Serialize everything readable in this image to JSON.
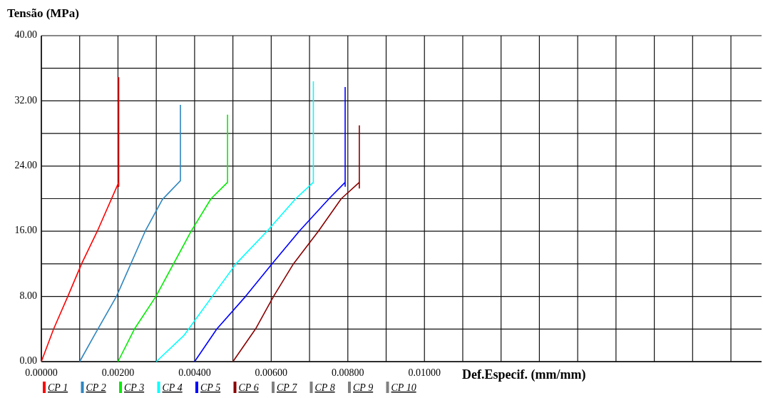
{
  "chart_data": {
    "type": "line",
    "ylabel": "Tensão (MPa)",
    "xlabel": "Def.Especif. (mm/mm)",
    "xlim": [
      0,
      0.0188
    ],
    "xticks": [
      {
        "value": 0,
        "label": "0.00000"
      },
      {
        "value": 0.001,
        "label": null
      },
      {
        "value": 0.002,
        "label": "0.00200"
      },
      {
        "value": 0.003,
        "label": null
      },
      {
        "value": 0.004,
        "label": "0.00400"
      },
      {
        "value": 0.005,
        "label": null
      },
      {
        "value": 0.006,
        "label": "0.00600"
      },
      {
        "value": 0.007,
        "label": null
      },
      {
        "value": 0.008,
        "label": "0.00800"
      },
      {
        "value": 0.009,
        "label": null
      },
      {
        "value": 0.01,
        "label": "0.01000"
      },
      {
        "value": 0.011,
        "label": null
      },
      {
        "value": 0.012,
        "label": null
      },
      {
        "value": 0.013,
        "label": null
      },
      {
        "value": 0.014,
        "label": null
      },
      {
        "value": 0.015,
        "label": null
      },
      {
        "value": 0.016,
        "label": null
      },
      {
        "value": 0.017,
        "label": null
      },
      {
        "value": 0.018,
        "label": null
      }
    ],
    "ylim": [
      0,
      40
    ],
    "yticks": [
      {
        "value": 0,
        "label": "0.00"
      },
      {
        "value": 4,
        "label": null
      },
      {
        "value": 8,
        "label": "8.00"
      },
      {
        "value": 12,
        "label": null
      },
      {
        "value": 16,
        "label": "16.00"
      },
      {
        "value": 20,
        "label": null
      },
      {
        "value": 24,
        "label": "24.00"
      },
      {
        "value": 28,
        "label": null
      },
      {
        "value": 32,
        "label": "32.00"
      },
      {
        "value": 36,
        "label": null
      },
      {
        "value": 40,
        "label": "40.00"
      }
    ],
    "grid": true,
    "legend": "bottom",
    "marker": "none",
    "line_style": "solid",
    "series": [
      {
        "name": "CP 1",
        "color": "#ff0000",
        "x": [
          0,
          0.00032,
          0.00069,
          0.00105,
          0.00146,
          0.00202,
          0.00202,
          0.00202
        ],
        "values": [
          0,
          4,
          8,
          12,
          16,
          22,
          21.5,
          34.9
        ]
      },
      {
        "name": "CP 2",
        "color": "#2e86c1",
        "x": [
          0.001,
          0.00138,
          0.00196,
          0.00271,
          0.00316,
          0.00363,
          0.00363
        ],
        "values": [
          0,
          3.2,
          8,
          16,
          19.9,
          22.2,
          31.5
        ]
      },
      {
        "name": "CP 3",
        "color": "#00ee00",
        "x": [
          0.002,
          0.00243,
          0.00299,
          0.00391,
          0.00443,
          0.00486,
          0.00486
        ],
        "values": [
          0,
          4,
          8,
          16,
          20,
          22,
          30.3
        ]
      },
      {
        "name": "CP 4",
        "color": "#00ffff",
        "x": [
          0.003,
          0.00372,
          0.00446,
          0.00508,
          0.00589,
          0.00664,
          0.0071,
          0.0071
        ],
        "values": [
          0,
          3.2,
          8,
          12,
          16,
          20,
          22,
          34.4
        ]
      },
      {
        "name": "CP 5",
        "color": "#0000ff",
        "x": [
          0.004,
          0.00458,
          0.00533,
          0.00602,
          0.00673,
          0.00751,
          0.00793,
          0.00793,
          0.00793
        ],
        "values": [
          0,
          4,
          8,
          12,
          16,
          20,
          22,
          21.5,
          33.7
        ]
      },
      {
        "name": "CP 6",
        "color": "#8b0000",
        "x": [
          0.005,
          0.00559,
          0.00606,
          0.00658,
          0.00723,
          0.00783,
          0.0083,
          0.0083,
          0.0083
        ],
        "values": [
          0,
          4,
          8,
          12,
          16,
          20,
          22,
          21.3,
          29
        ]
      },
      {
        "name": "CP 7",
        "color": "#808080"
      },
      {
        "name": "CP 8",
        "color": "#808080"
      },
      {
        "name": "CP 9",
        "color": "#808080"
      },
      {
        "name": "CP 10",
        "color": "#808080"
      }
    ]
  }
}
